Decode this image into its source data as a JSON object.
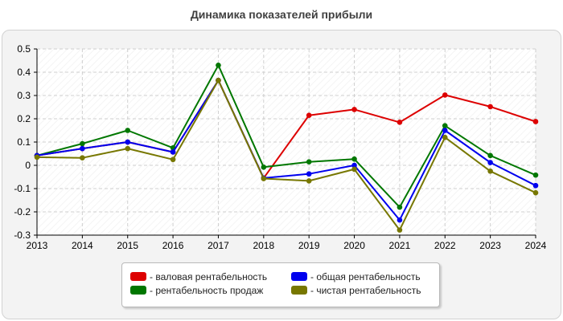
{
  "title": "Динамика показателей прибыли",
  "chart_data": {
    "type": "line",
    "x": [
      "2013",
      "2014",
      "2015",
      "2016",
      "2017",
      "2018",
      "2019",
      "2020",
      "2021",
      "2022",
      "2023",
      "2024"
    ],
    "ylim": [
      -0.3,
      0.5
    ],
    "yticks": [
      -0.3,
      -0.2,
      -0.1,
      0,
      0.1,
      0.2,
      0.3,
      0.4,
      0.5
    ],
    "ytick_labels": [
      "-0.3",
      "-0.2",
      "-0.1",
      "0",
      "0.1",
      "0.2",
      "0.3",
      "0.4",
      "0.5"
    ],
    "grid": true,
    "legend_position": "bottom",
    "series": [
      {
        "name": "- валовая рентабельность",
        "color": "#dd0000",
        "values": [
          0.042,
          0.072,
          0.1,
          0.057,
          0.365,
          -0.055,
          0.215,
          0.24,
          0.185,
          0.302,
          0.252,
          0.188
        ]
      },
      {
        "name": "- рентабельность продаж",
        "color": "#007700",
        "values": [
          0.042,
          0.093,
          0.15,
          0.075,
          0.43,
          -0.008,
          0.015,
          0.027,
          -0.18,
          0.17,
          0.042,
          -0.042
        ]
      },
      {
        "name": "- общая рентабельность",
        "color": "#0000ee",
        "values": [
          0.042,
          0.072,
          0.1,
          0.057,
          0.365,
          -0.055,
          -0.037,
          0.0,
          -0.235,
          0.15,
          0.012,
          -0.087
        ]
      },
      {
        "name": "- чистая рентабельность",
        "color": "#777700",
        "values": [
          0.035,
          0.032,
          0.072,
          0.025,
          0.365,
          -0.057,
          -0.067,
          -0.017,
          -0.278,
          0.12,
          -0.025,
          -0.118
        ]
      }
    ]
  }
}
